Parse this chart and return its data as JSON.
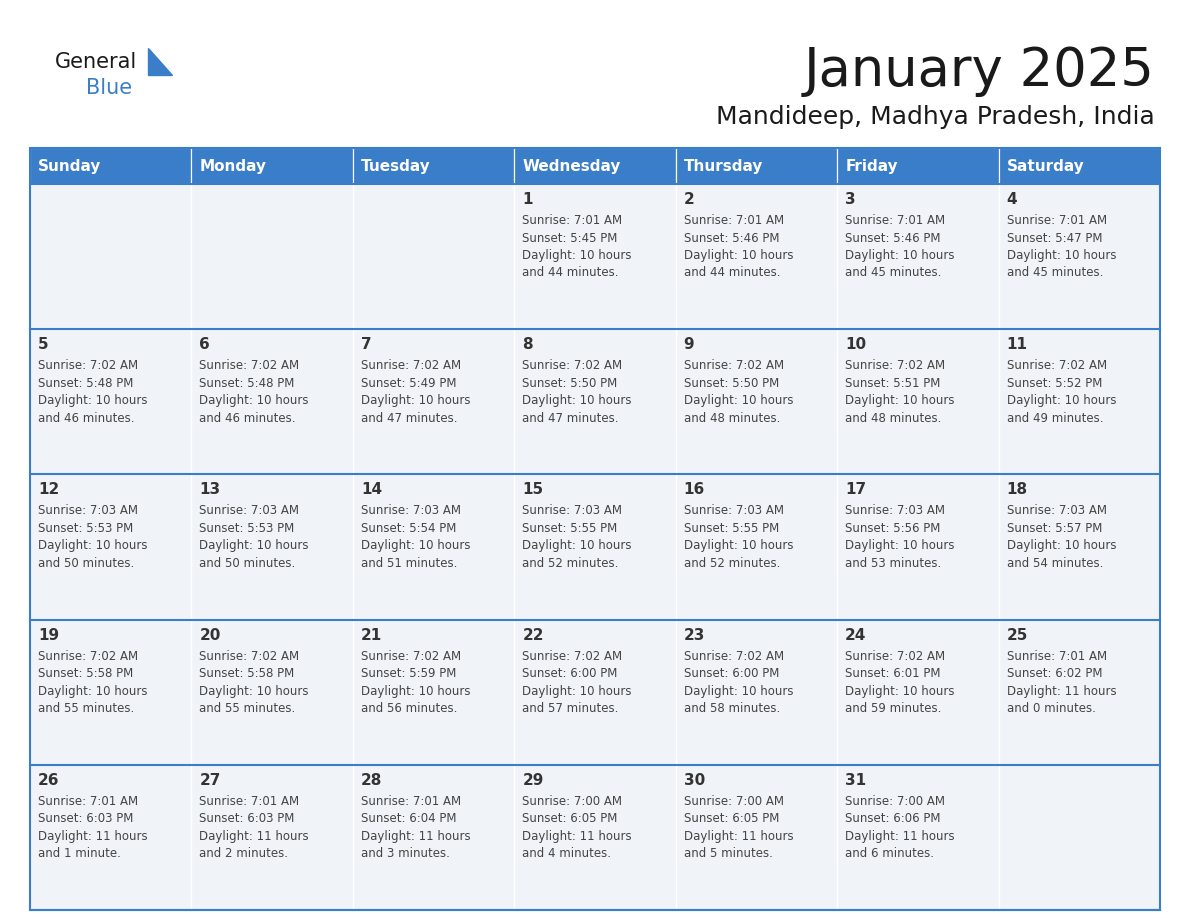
{
  "title": "January 2025",
  "subtitle": "Mandideep, Madhya Pradesh, India",
  "header_color": "#3a7dc9",
  "header_text_color": "#ffffff",
  "cell_bg_color": "#f0f4f8",
  "border_color": "#3a7dc9",
  "row_line_color": "#3a7dc9",
  "text_color": "#444444",
  "day_number_color": "#333333",
  "weekdays": [
    "Sunday",
    "Monday",
    "Tuesday",
    "Wednesday",
    "Thursday",
    "Friday",
    "Saturday"
  ],
  "weeks": [
    [
      {
        "day": "",
        "info": ""
      },
      {
        "day": "",
        "info": ""
      },
      {
        "day": "",
        "info": ""
      },
      {
        "day": "1",
        "info": "Sunrise: 7:01 AM\nSunset: 5:45 PM\nDaylight: 10 hours\nand 44 minutes."
      },
      {
        "day": "2",
        "info": "Sunrise: 7:01 AM\nSunset: 5:46 PM\nDaylight: 10 hours\nand 44 minutes."
      },
      {
        "day": "3",
        "info": "Sunrise: 7:01 AM\nSunset: 5:46 PM\nDaylight: 10 hours\nand 45 minutes."
      },
      {
        "day": "4",
        "info": "Sunrise: 7:01 AM\nSunset: 5:47 PM\nDaylight: 10 hours\nand 45 minutes."
      }
    ],
    [
      {
        "day": "5",
        "info": "Sunrise: 7:02 AM\nSunset: 5:48 PM\nDaylight: 10 hours\nand 46 minutes."
      },
      {
        "day": "6",
        "info": "Sunrise: 7:02 AM\nSunset: 5:48 PM\nDaylight: 10 hours\nand 46 minutes."
      },
      {
        "day": "7",
        "info": "Sunrise: 7:02 AM\nSunset: 5:49 PM\nDaylight: 10 hours\nand 47 minutes."
      },
      {
        "day": "8",
        "info": "Sunrise: 7:02 AM\nSunset: 5:50 PM\nDaylight: 10 hours\nand 47 minutes."
      },
      {
        "day": "9",
        "info": "Sunrise: 7:02 AM\nSunset: 5:50 PM\nDaylight: 10 hours\nand 48 minutes."
      },
      {
        "day": "10",
        "info": "Sunrise: 7:02 AM\nSunset: 5:51 PM\nDaylight: 10 hours\nand 48 minutes."
      },
      {
        "day": "11",
        "info": "Sunrise: 7:02 AM\nSunset: 5:52 PM\nDaylight: 10 hours\nand 49 minutes."
      }
    ],
    [
      {
        "day": "12",
        "info": "Sunrise: 7:03 AM\nSunset: 5:53 PM\nDaylight: 10 hours\nand 50 minutes."
      },
      {
        "day": "13",
        "info": "Sunrise: 7:03 AM\nSunset: 5:53 PM\nDaylight: 10 hours\nand 50 minutes."
      },
      {
        "day": "14",
        "info": "Sunrise: 7:03 AM\nSunset: 5:54 PM\nDaylight: 10 hours\nand 51 minutes."
      },
      {
        "day": "15",
        "info": "Sunrise: 7:03 AM\nSunset: 5:55 PM\nDaylight: 10 hours\nand 52 minutes."
      },
      {
        "day": "16",
        "info": "Sunrise: 7:03 AM\nSunset: 5:55 PM\nDaylight: 10 hours\nand 52 minutes."
      },
      {
        "day": "17",
        "info": "Sunrise: 7:03 AM\nSunset: 5:56 PM\nDaylight: 10 hours\nand 53 minutes."
      },
      {
        "day": "18",
        "info": "Sunrise: 7:03 AM\nSunset: 5:57 PM\nDaylight: 10 hours\nand 54 minutes."
      }
    ],
    [
      {
        "day": "19",
        "info": "Sunrise: 7:02 AM\nSunset: 5:58 PM\nDaylight: 10 hours\nand 55 minutes."
      },
      {
        "day": "20",
        "info": "Sunrise: 7:02 AM\nSunset: 5:58 PM\nDaylight: 10 hours\nand 55 minutes."
      },
      {
        "day": "21",
        "info": "Sunrise: 7:02 AM\nSunset: 5:59 PM\nDaylight: 10 hours\nand 56 minutes."
      },
      {
        "day": "22",
        "info": "Sunrise: 7:02 AM\nSunset: 6:00 PM\nDaylight: 10 hours\nand 57 minutes."
      },
      {
        "day": "23",
        "info": "Sunrise: 7:02 AM\nSunset: 6:00 PM\nDaylight: 10 hours\nand 58 minutes."
      },
      {
        "day": "24",
        "info": "Sunrise: 7:02 AM\nSunset: 6:01 PM\nDaylight: 10 hours\nand 59 minutes."
      },
      {
        "day": "25",
        "info": "Sunrise: 7:01 AM\nSunset: 6:02 PM\nDaylight: 11 hours\nand 0 minutes."
      }
    ],
    [
      {
        "day": "26",
        "info": "Sunrise: 7:01 AM\nSunset: 6:03 PM\nDaylight: 11 hours\nand 1 minute."
      },
      {
        "day": "27",
        "info": "Sunrise: 7:01 AM\nSunset: 6:03 PM\nDaylight: 11 hours\nand 2 minutes."
      },
      {
        "day": "28",
        "info": "Sunrise: 7:01 AM\nSunset: 6:04 PM\nDaylight: 11 hours\nand 3 minutes."
      },
      {
        "day": "29",
        "info": "Sunrise: 7:00 AM\nSunset: 6:05 PM\nDaylight: 11 hours\nand 4 minutes."
      },
      {
        "day": "30",
        "info": "Sunrise: 7:00 AM\nSunset: 6:05 PM\nDaylight: 11 hours\nand 5 minutes."
      },
      {
        "day": "31",
        "info": "Sunrise: 7:00 AM\nSunset: 6:06 PM\nDaylight: 11 hours\nand 6 minutes."
      },
      {
        "day": "",
        "info": ""
      }
    ]
  ],
  "logo_general_color": "#1a1a1a",
  "logo_blue_color": "#3a7dc9",
  "fig_bg": "#ffffff"
}
